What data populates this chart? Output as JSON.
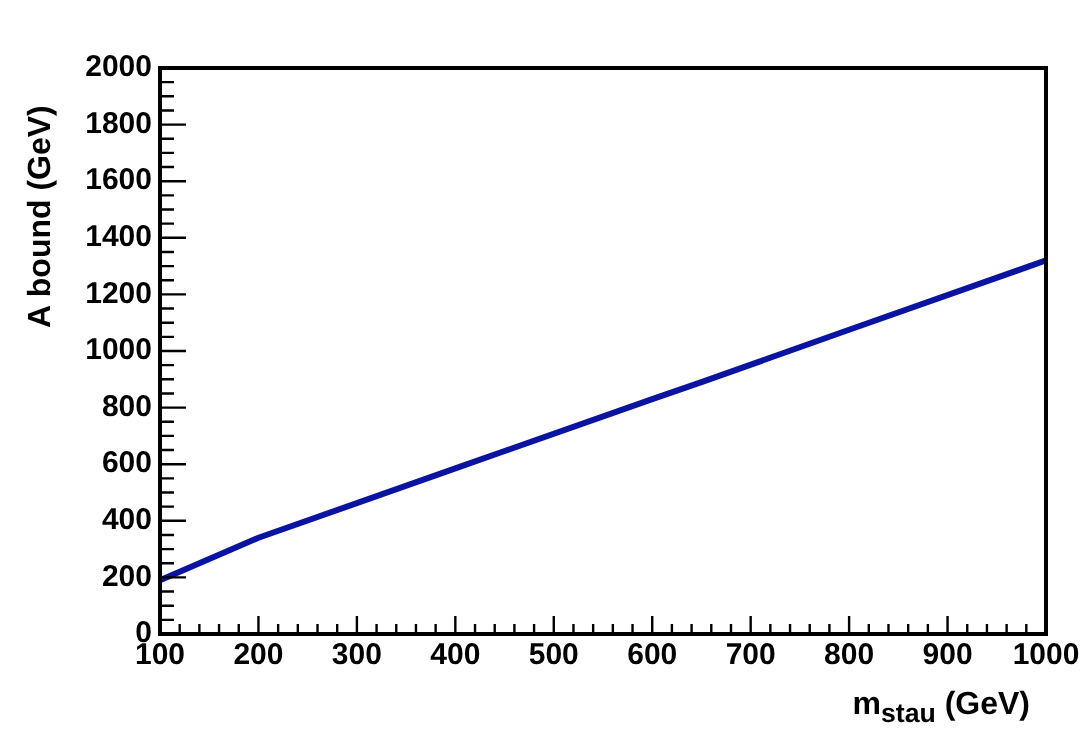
{
  "chart_data": {
    "type": "line",
    "xlabel": "m$_{stau}$ (GeV)",
    "ylabel": "A bound (GeV)",
    "x": [
      100,
      200,
      400,
      600,
      650,
      800,
      1000
    ],
    "series": [
      {
        "color": "#0a14a0",
        "values": [
          190,
          340,
          585,
          830,
          890,
          1075,
          1320
        ]
      }
    ],
    "xlim": [
      100,
      1000
    ],
    "ylim": [
      0,
      2000
    ],
    "xticks": [
      100,
      200,
      300,
      400,
      500,
      600,
      700,
      800,
      900,
      1000
    ],
    "yticks": [
      0,
      200,
      400,
      600,
      800,
      1000,
      1200,
      1400,
      1600,
      1800,
      2000
    ],
    "grid": false,
    "legend": false,
    "marker": "none",
    "line_style": "solid"
  }
}
